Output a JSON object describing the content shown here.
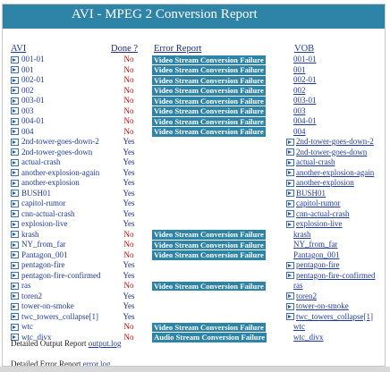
{
  "title": "AVI - MPEG 2 Conversion Report",
  "headers": {
    "avi": "AVI",
    "done": "Done ?",
    "error": "Error Report",
    "vob": "VOB"
  },
  "rows": [
    {
      "avi": "001-01",
      "done": "No",
      "error": "Video Stream Conversion Failure",
      "vob": "001-01",
      "vob_arrow": false
    },
    {
      "avi": "001",
      "done": "No",
      "error": "Video Stream Conversion Failure",
      "vob": "001",
      "vob_arrow": false
    },
    {
      "avi": "002-01",
      "done": "No",
      "error": "Video Stream Conversion Failure",
      "vob": "002-01",
      "vob_arrow": false
    },
    {
      "avi": "002",
      "done": "No",
      "error": "Video Stream Conversion Failure",
      "vob": "002",
      "vob_arrow": false
    },
    {
      "avi": "003-01",
      "done": "No",
      "error": "Video Stream Conversion Failure",
      "vob": "003-01",
      "vob_arrow": false
    },
    {
      "avi": "003",
      "done": "No",
      "error": "Video Stream Conversion Failure",
      "vob": "003",
      "vob_arrow": false
    },
    {
      "avi": "004-01",
      "done": "No",
      "error": "Video Stream Conversion Failure",
      "vob": "004-01",
      "vob_arrow": false
    },
    {
      "avi": "004",
      "done": "No",
      "error": "Video Stream Conversion Failure",
      "vob": "004",
      "vob_arrow": false
    },
    {
      "avi": "2nd-tower-goes-down-2",
      "done": "Yes",
      "error": "",
      "vob": "2nd-tower-goes-down-2",
      "vob_arrow": true
    },
    {
      "avi": "2nd-tower-goes-down",
      "done": "Yes",
      "error": "",
      "vob": "2nd-tower-goes-down",
      "vob_arrow": true
    },
    {
      "avi": "actual-crash",
      "done": "Yes",
      "error": "",
      "vob": "actual-crash",
      "vob_arrow": true
    },
    {
      "avi": "another-explosion-again",
      "done": "Yes",
      "error": "",
      "vob": "another-explosion-again",
      "vob_arrow": true
    },
    {
      "avi": "another-explosion",
      "done": "Yes",
      "error": "",
      "vob": "another-explosion",
      "vob_arrow": true
    },
    {
      "avi": "BUSH01",
      "done": "Yes",
      "error": "",
      "vob": "BUSH01",
      "vob_arrow": true
    },
    {
      "avi": "capitol-rumor",
      "done": "Yes",
      "error": "",
      "vob": "capitol-rumor",
      "vob_arrow": true
    },
    {
      "avi": "cnn-actual-crash",
      "done": "Yes",
      "error": "",
      "vob": "cnn-actual-crash",
      "vob_arrow": true
    },
    {
      "avi": "explosion-live",
      "done": "Yes",
      "error": "",
      "vob": "explosion-live",
      "vob_arrow": true
    },
    {
      "avi": "krash",
      "done": "No",
      "error": "Video Stream Conversion Failure",
      "vob": "krash",
      "vob_arrow": false
    },
    {
      "avi": "NY_from_far",
      "done": "No",
      "error": "Video Stream Conversion Failure",
      "vob": "NY_from_far",
      "vob_arrow": false
    },
    {
      "avi": "Pantagon_001",
      "done": "No",
      "error": "Video Stream Conversion Failure",
      "vob": "Pantagon_001",
      "vob_arrow": false
    },
    {
      "avi": "pentagon-fire",
      "done": "Yes",
      "error": "",
      "vob": "pentagon-fire",
      "vob_arrow": true
    },
    {
      "avi": "pentagon-fire-confirmed",
      "done": "Yes",
      "error": "",
      "vob": "pentagon-fire-confirmed",
      "vob_arrow": true
    },
    {
      "avi": "ras",
      "done": "No",
      "error": "Video Stream Conversion Failure",
      "vob": "ras",
      "vob_arrow": false
    },
    {
      "avi": "toren2",
      "done": "Yes",
      "error": "",
      "vob": "toren2",
      "vob_arrow": true
    },
    {
      "avi": "tower-on-smoke",
      "done": "Yes",
      "error": "",
      "vob": "tower-on-smoke",
      "vob_arrow": true
    },
    {
      "avi": "twc_towers_collapse[1]",
      "done": "Yes",
      "error": "",
      "vob": "twc_towers_collapse[1]",
      "vob_arrow": true
    },
    {
      "avi": "wtc",
      "done": "No",
      "error": "Video Stream Conversion Failure",
      "vob": "wtc",
      "vob_arrow": false
    },
    {
      "avi": "wtc_divx",
      "done": "No",
      "error": "Audio Stream Conversion Failure",
      "vob": "wtc_divx",
      "vob_arrow": false
    }
  ],
  "footer": {
    "output_label": "Detailed Output Report",
    "output_link": "output.log",
    "error_label": "Detailed Error Report",
    "error_link": "error.log"
  },
  "colors": {
    "accent": "#2e84a6",
    "no": "#cc0000",
    "yes": "#1f2a7a",
    "link": "#1f3a9e"
  }
}
